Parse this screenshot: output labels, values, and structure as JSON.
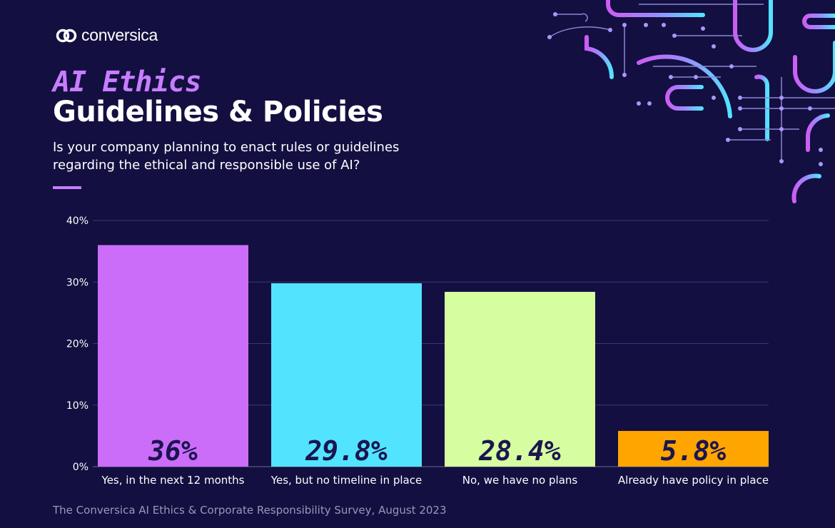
{
  "brand": {
    "name": "conversica"
  },
  "header": {
    "kicker": "AI Ethics",
    "title": "Guidelines & Policies",
    "question": "Is your company planning to enact rules or guidelines regarding the ethical and responsible use of AI?"
  },
  "footer": {
    "source": "The Conversica AI Ethics & Corporate Responsibility Survey, August 2023"
  },
  "chart_data": {
    "type": "bar",
    "categories": [
      "Yes, in the next 12 months",
      "Yes, but no timeline in place",
      "No, we have no plans",
      "Already have policy in place"
    ],
    "values": [
      36,
      29.8,
      28.4,
      5.8
    ],
    "data_labels": [
      "36%",
      "29.8%",
      "28.4%",
      "5.8%"
    ],
    "colors": [
      "#cc6dfa",
      "#52e4ff",
      "#d6fda0",
      "#ffa500"
    ],
    "yticks": [
      "0%",
      "10%",
      "20%",
      "30%",
      "40%"
    ],
    "ylim": [
      0,
      40
    ],
    "grid": true,
    "xlabel": "",
    "ylabel": ""
  }
}
